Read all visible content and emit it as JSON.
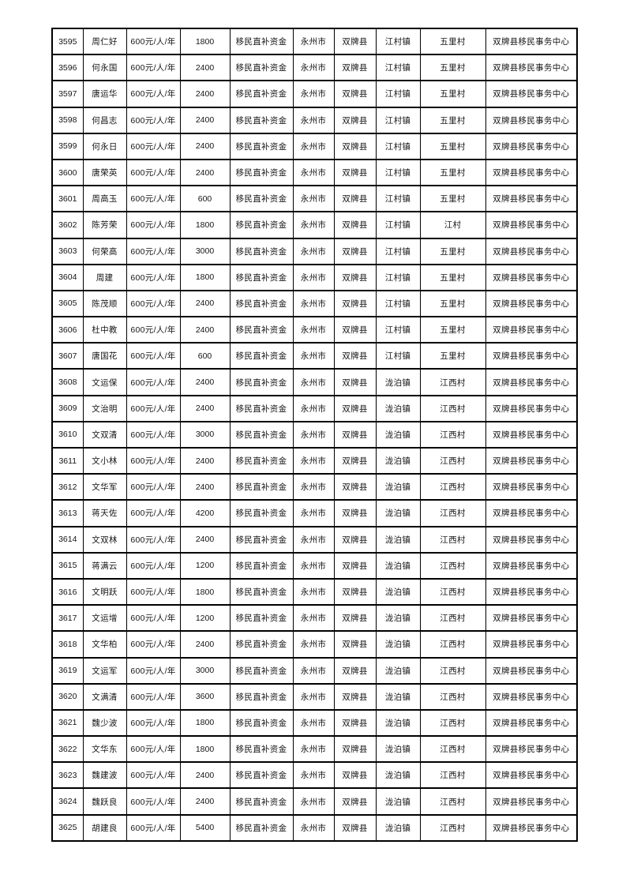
{
  "colors": {
    "page_background": "#ffffff",
    "table_border": "#000000",
    "text": "#141414"
  },
  "table": {
    "row_count": 31,
    "column_count": 10,
    "rows": [
      [
        "3595",
        "周仁好",
        "600元/人/年",
        "1800",
        "移民直补资金",
        "永州市",
        "双牌县",
        "江村镇",
        "五里村",
        "双牌县移民事务中心"
      ],
      [
        "3596",
        "何永国",
        "600元/人/年",
        "2400",
        "移民直补资金",
        "永州市",
        "双牌县",
        "江村镇",
        "五里村",
        "双牌县移民事务中心"
      ],
      [
        "3597",
        "唐运华",
        "600元/人/年",
        "2400",
        "移民直补资金",
        "永州市",
        "双牌县",
        "江村镇",
        "五里村",
        "双牌县移民事务中心"
      ],
      [
        "3598",
        "何昌志",
        "600元/人/年",
        "2400",
        "移民直补资金",
        "永州市",
        "双牌县",
        "江村镇",
        "五里村",
        "双牌县移民事务中心"
      ],
      [
        "3599",
        "何永日",
        "600元/人/年",
        "2400",
        "移民直补资金",
        "永州市",
        "双牌县",
        "江村镇",
        "五里村",
        "双牌县移民事务中心"
      ],
      [
        "3600",
        "唐荣英",
        "600元/人/年",
        "2400",
        "移民直补资金",
        "永州市",
        "双牌县",
        "江村镇",
        "五里村",
        "双牌县移民事务中心"
      ],
      [
        "3601",
        "周高玉",
        "600元/人/年",
        "600",
        "移民直补资金",
        "永州市",
        "双牌县",
        "江村镇",
        "五里村",
        "双牌县移民事务中心"
      ],
      [
        "3602",
        "陈芳荣",
        "600元/人/年",
        "1800",
        "移民直补资金",
        "永州市",
        "双牌县",
        "江村镇",
        "江村",
        "双牌县移民事务中心"
      ],
      [
        "3603",
        "何荣高",
        "600元/人/年",
        "3000",
        "移民直补资金",
        "永州市",
        "双牌县",
        "江村镇",
        "五里村",
        "双牌县移民事务中心"
      ],
      [
        "3604",
        "周建",
        "600元/人/年",
        "1800",
        "移民直补资金",
        "永州市",
        "双牌县",
        "江村镇",
        "五里村",
        "双牌县移民事务中心"
      ],
      [
        "3605",
        "陈茂顺",
        "600元/人/年",
        "2400",
        "移民直补资金",
        "永州市",
        "双牌县",
        "江村镇",
        "五里村",
        "双牌县移民事务中心"
      ],
      [
        "3606",
        "杜中教",
        "600元/人/年",
        "2400",
        "移民直补资金",
        "永州市",
        "双牌县",
        "江村镇",
        "五里村",
        "双牌县移民事务中心"
      ],
      [
        "3607",
        "唐国花",
        "600元/人/年",
        "600",
        "移民直补资金",
        "永州市",
        "双牌县",
        "江村镇",
        "五里村",
        "双牌县移民事务中心"
      ],
      [
        "3608",
        "文运保",
        "600元/人/年",
        "2400",
        "移民直补资金",
        "永州市",
        "双牌县",
        "泷泊镇",
        "江西村",
        "双牌县移民事务中心"
      ],
      [
        "3609",
        "文治明",
        "600元/人/年",
        "2400",
        "移民直补资金",
        "永州市",
        "双牌县",
        "泷泊镇",
        "江西村",
        "双牌县移民事务中心"
      ],
      [
        "3610",
        "文双清",
        "600元/人/年",
        "3000",
        "移民直补资金",
        "永州市",
        "双牌县",
        "泷泊镇",
        "江西村",
        "双牌县移民事务中心"
      ],
      [
        "3611",
        "文小林",
        "600元/人/年",
        "2400",
        "移民直补资金",
        "永州市",
        "双牌县",
        "泷泊镇",
        "江西村",
        "双牌县移民事务中心"
      ],
      [
        "3612",
        "文华军",
        "600元/人/年",
        "2400",
        "移民直补资金",
        "永州市",
        "双牌县",
        "泷泊镇",
        "江西村",
        "双牌县移民事务中心"
      ],
      [
        "3613",
        "蒋天佐",
        "600元/人/年",
        "4200",
        "移民直补资金",
        "永州市",
        "双牌县",
        "泷泊镇",
        "江西村",
        "双牌县移民事务中心"
      ],
      [
        "3614",
        "文双林",
        "600元/人/年",
        "2400",
        "移民直补资金",
        "永州市",
        "双牌县",
        "泷泊镇",
        "江西村",
        "双牌县移民事务中心"
      ],
      [
        "3615",
        "蒋满云",
        "600元/人/年",
        "1200",
        "移民直补资金",
        "永州市",
        "双牌县",
        "泷泊镇",
        "江西村",
        "双牌县移民事务中心"
      ],
      [
        "3616",
        "文明跃",
        "600元/人/年",
        "1800",
        "移民直补资金",
        "永州市",
        "双牌县",
        "泷泊镇",
        "江西村",
        "双牌县移民事务中心"
      ],
      [
        "3617",
        "文运增",
        "600元/人/年",
        "1200",
        "移民直补资金",
        "永州市",
        "双牌县",
        "泷泊镇",
        "江西村",
        "双牌县移民事务中心"
      ],
      [
        "3618",
        "文华柏",
        "600元/人/年",
        "2400",
        "移民直补资金",
        "永州市",
        "双牌县",
        "泷泊镇",
        "江西村",
        "双牌县移民事务中心"
      ],
      [
        "3619",
        "文运军",
        "600元/人/年",
        "3000",
        "移民直补资金",
        "永州市",
        "双牌县",
        "泷泊镇",
        "江西村",
        "双牌县移民事务中心"
      ],
      [
        "3620",
        "文满清",
        "600元/人/年",
        "3600",
        "移民直补资金",
        "永州市",
        "双牌县",
        "泷泊镇",
        "江西村",
        "双牌县移民事务中心"
      ],
      [
        "3621",
        "魏少波",
        "600元/人/年",
        "1800",
        "移民直补资金",
        "永州市",
        "双牌县",
        "泷泊镇",
        "江西村",
        "双牌县移民事务中心"
      ],
      [
        "3622",
        "文华东",
        "600元/人/年",
        "1800",
        "移民直补资金",
        "永州市",
        "双牌县",
        "泷泊镇",
        "江西村",
        "双牌县移民事务中心"
      ],
      [
        "3623",
        "魏建波",
        "600元/人/年",
        "2400",
        "移民直补资金",
        "永州市",
        "双牌县",
        "泷泊镇",
        "江西村",
        "双牌县移民事务中心"
      ],
      [
        "3624",
        "魏跃良",
        "600元/人/年",
        "2400",
        "移民直补资金",
        "永州市",
        "双牌县",
        "泷泊镇",
        "江西村",
        "双牌县移民事务中心"
      ],
      [
        "3625",
        "胡建良",
        "600元/人/年",
        "5400",
        "移民直补资金",
        "永州市",
        "双牌县",
        "泷泊镇",
        "江西村",
        "双牌县移民事务中心"
      ]
    ]
  }
}
